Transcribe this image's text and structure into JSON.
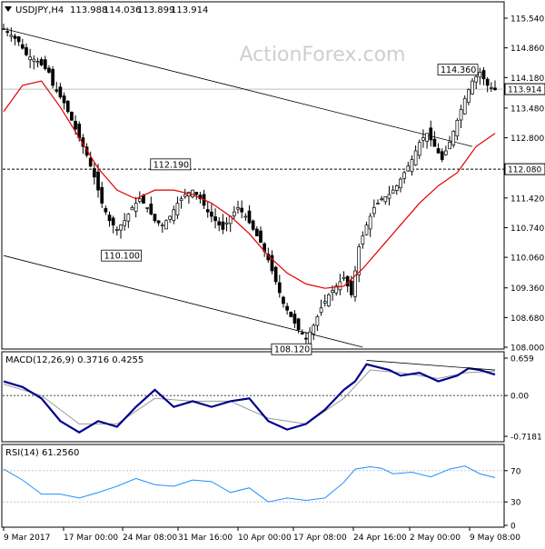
{
  "header": {
    "symbol": "USDJPY,H4",
    "open": "113.988",
    "high": "114.036",
    "low": "113.899",
    "close": "113.914"
  },
  "watermark": "ActionForex.com",
  "colors": {
    "candle": "#000000",
    "ma": "#e00000",
    "macd": "#00008b",
    "signal": "#999999",
    "rsi": "#1e90ff",
    "grid": "#bdbdbd",
    "watermark": "#cfcfcf",
    "level_box": "#000000"
  },
  "x_labels": [
    "9 Mar 2017",
    "17 Mar 00:00",
    "24 Mar 08:00",
    "31 Mar 16:00",
    "10 Apr 00:00",
    "17 Apr 08:00",
    "24 Apr 16:00",
    "2 May 00:00",
    "9 May 08:00"
  ],
  "chart_data": [
    {
      "type": "candlestick",
      "panel": "price",
      "y_ticks": [
        "115.540",
        "114.860",
        "114.180",
        "113.480",
        "112.800",
        "111.420",
        "110.740",
        "110.060",
        "109.360",
        "108.680",
        "108.000"
      ],
      "ylim": [
        108.0,
        115.54
      ],
      "current_price": "113.914",
      "horizontal_level": "112.080",
      "annotations": [
        {
          "text": "112.190",
          "value": 112.19
        },
        {
          "text": "110.100",
          "value": 110.1
        },
        {
          "text": "108.120",
          "value": 108.12
        },
        {
          "text": "114.360",
          "value": 114.36
        }
      ],
      "path": [
        [
          0,
          115.3
        ],
        [
          4,
          115.0
        ],
        [
          6,
          114.7
        ],
        [
          9,
          114.55
        ],
        [
          12,
          114.3
        ],
        [
          13,
          114.0
        ],
        [
          16,
          113.6
        ],
        [
          18,
          113.2
        ],
        [
          20,
          112.8
        ],
        [
          22,
          112.4
        ],
        [
          24,
          111.9
        ],
        [
          26,
          111.3
        ],
        [
          28,
          110.9
        ],
        [
          30,
          110.7
        ],
        [
          32,
          110.9
        ],
        [
          34,
          111.2
        ],
        [
          36,
          111.4
        ],
        [
          38,
          111.2
        ],
        [
          40,
          110.9
        ],
        [
          42,
          110.8
        ],
        [
          44,
          111.0
        ],
        [
          46,
          111.3
        ],
        [
          48,
          111.5
        ],
        [
          50,
          111.6
        ],
        [
          52,
          111.4
        ],
        [
          54,
          111.1
        ],
        [
          56,
          110.9
        ],
        [
          58,
          110.7
        ],
        [
          60,
          111.0
        ],
        [
          62,
          111.2
        ],
        [
          64,
          111.0
        ],
        [
          66,
          110.7
        ],
        [
          68,
          110.4
        ],
        [
          70,
          110.0
        ],
        [
          72,
          109.5
        ],
        [
          74,
          109.0
        ],
        [
          76,
          108.7
        ],
        [
          78,
          108.4
        ],
        [
          80,
          108.2
        ],
        [
          82,
          108.5
        ],
        [
          84,
          108.9
        ],
        [
          86,
          109.2
        ],
        [
          88,
          109.4
        ],
        [
          90,
          109.6
        ],
        [
          92,
          109.2
        ],
        [
          94,
          110.3
        ],
        [
          96,
          110.8
        ],
        [
          98,
          111.2
        ],
        [
          100,
          111.4
        ],
        [
          102,
          111.5
        ],
        [
          104,
          111.7
        ],
        [
          106,
          112.0
        ],
        [
          108,
          112.3
        ],
        [
          110,
          112.7
        ],
        [
          112,
          112.9
        ],
        [
          114,
          112.6
        ],
        [
          116,
          112.3
        ],
        [
          118,
          112.7
        ],
        [
          120,
          113.2
        ],
        [
          122,
          113.7
        ],
        [
          124,
          114.1
        ],
        [
          126,
          114.3
        ],
        [
          128,
          114.0
        ],
        [
          130,
          113.9
        ]
      ],
      "ma_path": [
        [
          0,
          113.4
        ],
        [
          5,
          114.0
        ],
        [
          10,
          114.1
        ],
        [
          15,
          113.5
        ],
        [
          20,
          112.8
        ],
        [
          25,
          112.1
        ],
        [
          30,
          111.6
        ],
        [
          35,
          111.4
        ],
        [
          40,
          111.6
        ],
        [
          45,
          111.6
        ],
        [
          50,
          111.5
        ],
        [
          55,
          111.3
        ],
        [
          60,
          111.0
        ],
        [
          65,
          110.6
        ],
        [
          70,
          110.1
        ],
        [
          75,
          109.7
        ],
        [
          80,
          109.45
        ],
        [
          85,
          109.35
        ],
        [
          90,
          109.4
        ],
        [
          95,
          109.8
        ],
        [
          100,
          110.3
        ],
        [
          105,
          110.8
        ],
        [
          110,
          111.3
        ],
        [
          115,
          111.7
        ],
        [
          120,
          112.0
        ],
        [
          125,
          112.6
        ],
        [
          130,
          112.9
        ]
      ],
      "channel_upper": [
        [
          0,
          115.3
        ],
        [
          124,
          112.6
        ]
      ],
      "channel_lower": [
        [
          0,
          110.1
        ],
        [
          95,
          108.0
        ]
      ]
    },
    {
      "type": "line",
      "panel": "macd",
      "label": "MACD(12,26,9) 0.3716 0.4255",
      "y_ticks": [
        "0.659",
        "0.00",
        "-0.7181"
      ],
      "ylim": [
        -0.7181,
        0.659
      ],
      "macd_path": [
        [
          0,
          0.25
        ],
        [
          5,
          0.15
        ],
        [
          10,
          -0.05
        ],
        [
          15,
          -0.45
        ],
        [
          20,
          -0.65
        ],
        [
          25,
          -0.45
        ],
        [
          30,
          -0.55
        ],
        [
          35,
          -0.2
        ],
        [
          40,
          0.1
        ],
        [
          45,
          -0.2
        ],
        [
          50,
          -0.1
        ],
        [
          55,
          -0.2
        ],
        [
          60,
          -0.1
        ],
        [
          65,
          -0.05
        ],
        [
          70,
          -0.45
        ],
        [
          75,
          -0.6
        ],
        [
          80,
          -0.5
        ],
        [
          85,
          -0.25
        ],
        [
          90,
          0.1
        ],
        [
          93,
          0.25
        ],
        [
          96,
          0.55
        ],
        [
          99,
          0.5
        ],
        [
          102,
          0.45
        ],
        [
          105,
          0.35
        ],
        [
          110,
          0.4
        ],
        [
          115,
          0.25
        ],
        [
          120,
          0.35
        ],
        [
          123,
          0.48
        ],
        [
          126,
          0.45
        ],
        [
          130,
          0.37
        ]
      ],
      "signal_path": [
        [
          0,
          0.2
        ],
        [
          10,
          0.0
        ],
        [
          20,
          -0.5
        ],
        [
          30,
          -0.5
        ],
        [
          40,
          -0.05
        ],
        [
          50,
          -0.1
        ],
        [
          60,
          -0.1
        ],
        [
          70,
          -0.4
        ],
        [
          80,
          -0.5
        ],
        [
          90,
          -0.05
        ],
        [
          97,
          0.45
        ],
        [
          105,
          0.4
        ],
        [
          115,
          0.3
        ],
        [
          122,
          0.4
        ],
        [
          130,
          0.43
        ]
      ],
      "upper_trend": [
        [
          96,
          0.62
        ],
        [
          130,
          0.45
        ]
      ]
    },
    {
      "type": "line",
      "panel": "rsi",
      "label": "RSI(14) 61.2560",
      "y_ticks": [
        "70",
        "30",
        "0"
      ],
      "ylim": [
        0,
        100
      ],
      "rsi_path": [
        [
          0,
          72
        ],
        [
          5,
          58
        ],
        [
          10,
          40
        ],
        [
          15,
          40
        ],
        [
          20,
          35
        ],
        [
          25,
          42
        ],
        [
          30,
          50
        ],
        [
          35,
          60
        ],
        [
          40,
          52
        ],
        [
          45,
          50
        ],
        [
          50,
          58
        ],
        [
          55,
          56
        ],
        [
          60,
          42
        ],
        [
          65,
          48
        ],
        [
          70,
          30
        ],
        [
          75,
          35
        ],
        [
          80,
          32
        ],
        [
          85,
          35
        ],
        [
          90,
          55
        ],
        [
          93,
          72
        ],
        [
          97,
          75
        ],
        [
          100,
          73
        ],
        [
          103,
          66
        ],
        [
          108,
          68
        ],
        [
          113,
          62
        ],
        [
          118,
          72
        ],
        [
          122,
          76
        ],
        [
          126,
          66
        ],
        [
          130,
          61
        ]
      ]
    }
  ]
}
